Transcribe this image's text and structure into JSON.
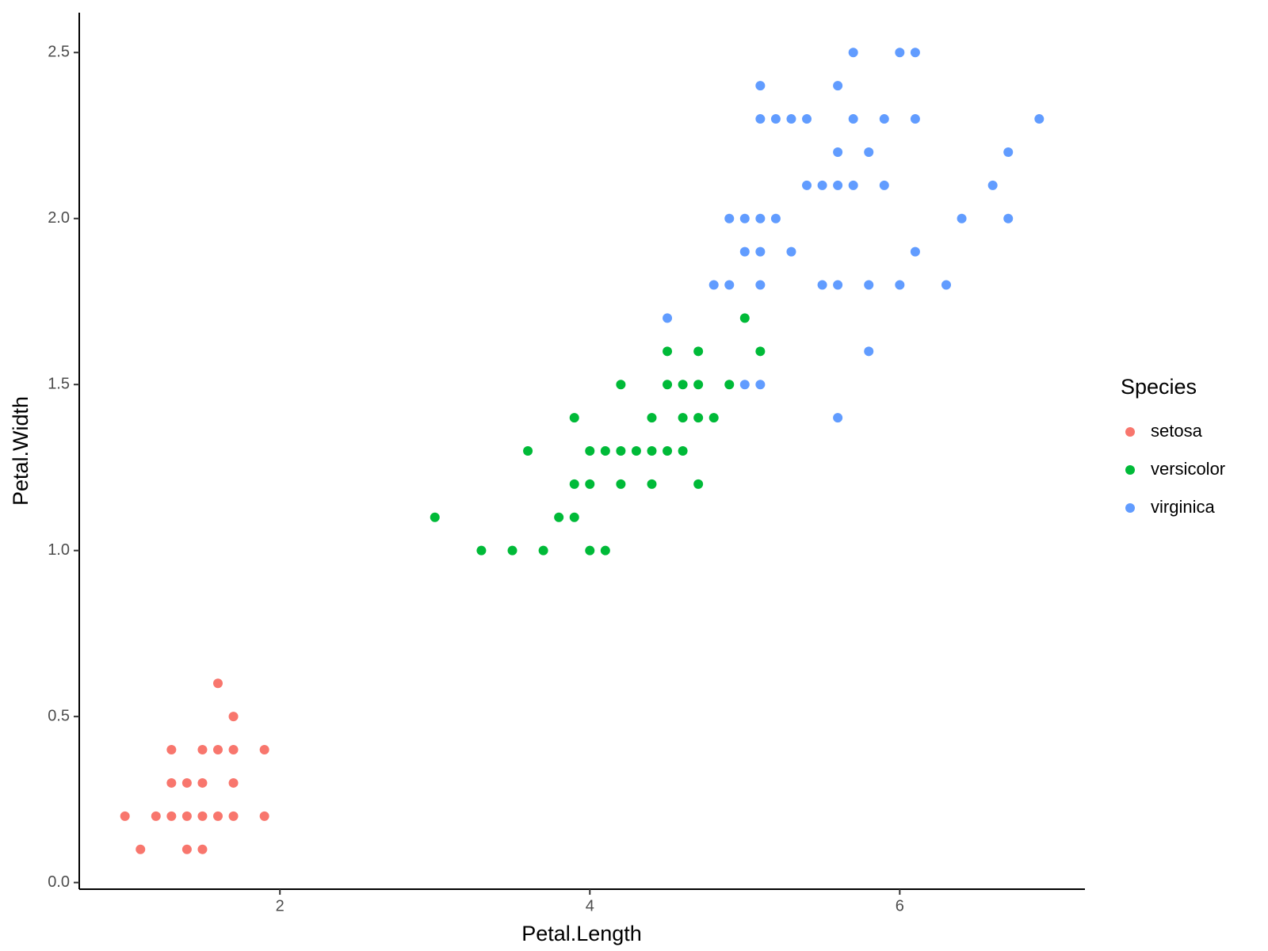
{
  "chart_data": {
    "type": "scatter",
    "xlabel": "Petal.Length",
    "ylabel": "Petal.Width",
    "legend_title": "Species",
    "legend_position": "right",
    "xlim": [
      0.705,
      7.195
    ],
    "ylim": [
      -0.02,
      2.62
    ],
    "xticks": [
      2,
      4,
      6
    ],
    "yticks": [
      {
        "value": 0,
        "label": "0.0"
      },
      {
        "value": 0.5,
        "label": "0.5"
      },
      {
        "value": 1,
        "label": "1.0"
      },
      {
        "value": 1.5,
        "label": "1.5"
      },
      {
        "value": 2,
        "label": "2.0"
      },
      {
        "value": 2.5,
        "label": "2.5"
      }
    ],
    "series": [
      {
        "name": "setosa",
        "color": "#F8766D",
        "x": [
          1.0,
          1.1,
          1.2,
          1.3,
          1.4,
          1.5,
          1.6,
          1.7,
          1.9,
          1.4,
          1.5,
          1.3,
          1.4,
          1.5,
          1.7,
          1.3,
          1.5,
          1.6,
          1.7,
          1.9,
          1.7,
          1.6
        ],
        "values": [
          0.2,
          0.1,
          0.2,
          0.2,
          0.2,
          0.2,
          0.2,
          0.2,
          0.2,
          0.1,
          0.1,
          0.3,
          0.3,
          0.3,
          0.3,
          0.4,
          0.4,
          0.4,
          0.4,
          0.4,
          0.5,
          0.6
        ]
      },
      {
        "name": "versicolor",
        "color": "#00BA38",
        "x": [
          3.0,
          3.3,
          3.5,
          3.7,
          4.0,
          4.1,
          3.8,
          3.9,
          3.9,
          4.0,
          4.2,
          4.4,
          4.7,
          3.6,
          4.0,
          4.1,
          4.2,
          4.3,
          4.4,
          4.5,
          4.6,
          3.9,
          4.4,
          4.6,
          4.7,
          4.8,
          4.2,
          4.5,
          4.6,
          4.7,
          4.9,
          4.5,
          4.7,
          5.1,
          5.0
        ],
        "values": [
          1.1,
          1.0,
          1.0,
          1.0,
          1.0,
          1.0,
          1.1,
          1.1,
          1.2,
          1.2,
          1.2,
          1.2,
          1.2,
          1.3,
          1.3,
          1.3,
          1.3,
          1.3,
          1.3,
          1.3,
          1.3,
          1.4,
          1.4,
          1.4,
          1.4,
          1.4,
          1.5,
          1.5,
          1.5,
          1.5,
          1.5,
          1.6,
          1.6,
          1.6,
          1.7
        ]
      },
      {
        "name": "virginica",
        "color": "#619CFF",
        "x": [
          4.5,
          5.0,
          5.1,
          5.6,
          5.8,
          4.8,
          4.9,
          5.1,
          5.5,
          5.6,
          5.8,
          6.0,
          6.3,
          5.0,
          5.1,
          5.3,
          6.1,
          4.9,
          5.0,
          5.1,
          5.2,
          6.4,
          6.7,
          5.4,
          5.5,
          5.6,
          5.7,
          5.9,
          6.6,
          5.6,
          5.8,
          6.7,
          5.1,
          5.2,
          5.3,
          5.4,
          5.7,
          5.9,
          6.1,
          6.9,
          5.1,
          5.6,
          5.7,
          6.0,
          6.1
        ],
        "values": [
          1.7,
          1.5,
          1.5,
          1.4,
          1.6,
          1.8,
          1.8,
          1.8,
          1.8,
          1.8,
          1.8,
          1.8,
          1.8,
          1.9,
          1.9,
          1.9,
          1.9,
          2.0,
          2.0,
          2.0,
          2.0,
          2.0,
          2.0,
          2.1,
          2.1,
          2.1,
          2.1,
          2.1,
          2.1,
          2.2,
          2.2,
          2.2,
          2.3,
          2.3,
          2.3,
          2.3,
          2.3,
          2.3,
          2.3,
          2.3,
          2.4,
          2.4,
          2.5,
          2.5,
          2.5
        ]
      }
    ]
  }
}
